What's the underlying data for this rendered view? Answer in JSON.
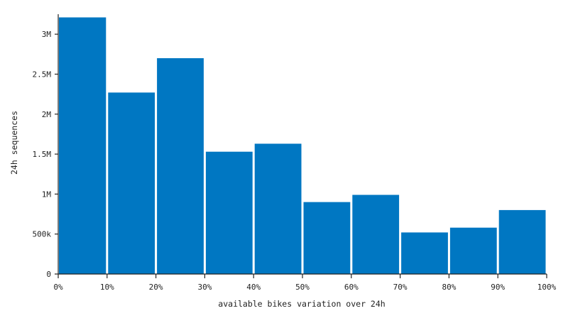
{
  "chart_data": {
    "type": "bar",
    "title": "",
    "xlabel": "available bikes variation over 24h",
    "ylabel": "24h sequences",
    "x_edges": [
      0,
      10,
      20,
      30,
      40,
      50,
      60,
      70,
      80,
      90,
      100
    ],
    "x_tick_labels": [
      "0%",
      "10%",
      "20%",
      "30%",
      "40%",
      "50%",
      "60%",
      "70%",
      "80%",
      "90%",
      "100%"
    ],
    "categories": [
      "0-10%",
      "10-20%",
      "20-30%",
      "30-40%",
      "40-50%",
      "50-60%",
      "60-70%",
      "70-80%",
      "80-90%",
      "90-100%"
    ],
    "values": [
      3210000,
      2270000,
      2700000,
      1530000,
      1630000,
      900000,
      990000,
      520000,
      580000,
      800000
    ],
    "ylim": [
      0,
      3250000
    ],
    "y_ticks": [
      0,
      500000,
      1000000,
      1500000,
      2000000,
      2500000,
      3000000
    ],
    "y_tick_labels": [
      "0",
      "500k",
      "1M",
      "1.5M",
      "2M",
      "2.5M",
      "3M"
    ],
    "xlim": [
      0,
      100
    ],
    "grid": false,
    "legend": "none",
    "bar_color": "#0077c2",
    "axis_color": "#222222"
  }
}
